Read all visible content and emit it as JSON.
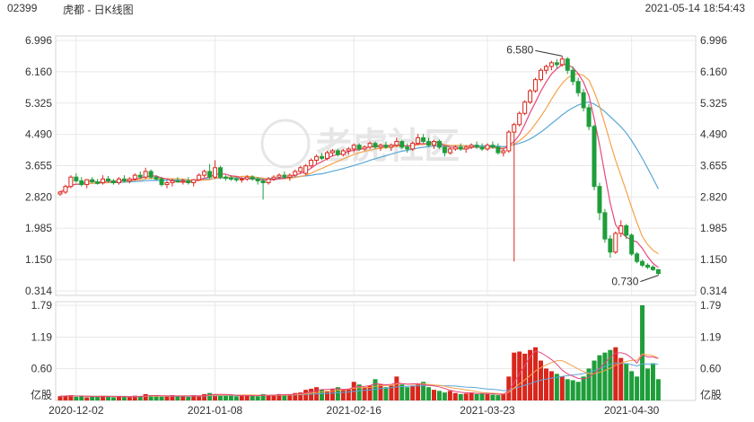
{
  "header": {
    "code": "02399",
    "title": "虎都 - 日K线图",
    "timestamp": "2021-05-14 18:54:43"
  },
  "watermark": "老虎社区",
  "colors": {
    "up": "#d9261c",
    "down": "#1e9e3a",
    "ma5": "#e7467c",
    "ma10": "#f5a34a",
    "ma20": "#5aa8d8",
    "grid": "#e8e8e8"
  },
  "chart_data": {
    "type": "candlestick",
    "price_axis": {
      "ticks": [
        "6.996",
        "6.160",
        "5.325",
        "4.490",
        "3.655",
        "2.820",
        "1.985",
        "1.150",
        "0.314"
      ],
      "ylim": [
        0.314,
        6.996
      ]
    },
    "volume_axis": {
      "ticks": [
        "1.79",
        "1.19",
        "0.60"
      ],
      "unit": "亿股",
      "ylim": [
        0,
        1.79
      ]
    },
    "x_tick_labels": [
      "2020-12-02",
      "2021-01-08",
      "2021-02-16",
      "2021-03-23",
      "2021-04-30"
    ],
    "x_tick_index": [
      3,
      29,
      55,
      80,
      107
    ],
    "annotations": {
      "high": "6.580",
      "low": "0.730"
    },
    "ohlc": [
      [
        2.9,
        2.98,
        2.85,
        2.95
      ],
      [
        2.95,
        3.15,
        2.9,
        3.1
      ],
      [
        3.1,
        3.4,
        3.05,
        3.35
      ],
      [
        3.35,
        3.45,
        3.2,
        3.25
      ],
      [
        3.25,
        3.35,
        3.1,
        3.15
      ],
      [
        3.15,
        3.3,
        3.05,
        3.28
      ],
      [
        3.28,
        3.35,
        3.2,
        3.22
      ],
      [
        3.22,
        3.3,
        3.15,
        3.18
      ],
      [
        3.2,
        3.4,
        3.15,
        3.3
      ],
      [
        3.3,
        3.38,
        3.2,
        3.25
      ],
      [
        3.25,
        3.3,
        3.15,
        3.2
      ],
      [
        3.2,
        3.35,
        3.15,
        3.3
      ],
      [
        3.3,
        3.4,
        3.2,
        3.25
      ],
      [
        3.25,
        3.35,
        3.18,
        3.3
      ],
      [
        3.3,
        3.45,
        3.25,
        3.4
      ],
      [
        3.4,
        3.5,
        3.3,
        3.35
      ],
      [
        3.35,
        3.6,
        3.3,
        3.5
      ],
      [
        3.5,
        3.55,
        3.3,
        3.35
      ],
      [
        3.35,
        3.4,
        3.25,
        3.3
      ],
      [
        3.3,
        3.35,
        3.1,
        3.15
      ],
      [
        3.15,
        3.25,
        3.05,
        3.2
      ],
      [
        3.2,
        3.3,
        3.1,
        3.25
      ],
      [
        3.25,
        3.35,
        3.2,
        3.22
      ],
      [
        3.22,
        3.3,
        3.15,
        3.25
      ],
      [
        3.25,
        3.35,
        3.15,
        3.2
      ],
      [
        3.2,
        3.3,
        3.1,
        3.28
      ],
      [
        3.28,
        3.45,
        3.25,
        3.4
      ],
      [
        3.4,
        3.55,
        3.35,
        3.5
      ],
      [
        3.5,
        3.7,
        3.3,
        3.35
      ],
      [
        3.35,
        3.8,
        3.3,
        3.6
      ],
      [
        3.6,
        3.65,
        3.3,
        3.35
      ],
      [
        3.35,
        3.4,
        3.25,
        3.32
      ],
      [
        3.32,
        3.4,
        3.25,
        3.3
      ],
      [
        3.3,
        3.35,
        3.22,
        3.28
      ],
      [
        3.28,
        3.35,
        3.2,
        3.3
      ],
      [
        3.3,
        3.4,
        3.25,
        3.35
      ],
      [
        3.35,
        3.4,
        3.25,
        3.3
      ],
      [
        3.3,
        3.35,
        3.15,
        3.25
      ],
      [
        3.25,
        3.3,
        2.75,
        3.2
      ],
      [
        3.2,
        3.35,
        3.15,
        3.3
      ],
      [
        3.3,
        3.4,
        3.25,
        3.35
      ],
      [
        3.35,
        3.45,
        3.3,
        3.4
      ],
      [
        3.4,
        3.5,
        3.3,
        3.35
      ],
      [
        3.35,
        3.45,
        3.25,
        3.4
      ],
      [
        3.4,
        3.55,
        3.35,
        3.5
      ],
      [
        3.5,
        3.65,
        3.45,
        3.6
      ],
      [
        3.45,
        3.7,
        3.4,
        3.65
      ],
      [
        3.65,
        3.85,
        3.6,
        3.8
      ],
      [
        3.8,
        3.95,
        3.7,
        3.9
      ],
      [
        3.9,
        4.0,
        3.8,
        3.85
      ],
      [
        3.85,
        4.05,
        3.8,
        4.0
      ],
      [
        4.0,
        4.1,
        3.9,
        4.05
      ],
      [
        4.05,
        4.1,
        3.9,
        3.95
      ],
      [
        3.95,
        4.1,
        3.9,
        4.05
      ],
      [
        4.05,
        4.15,
        3.95,
        4.1
      ],
      [
        4.1,
        4.25,
        4.0,
        4.2
      ],
      [
        4.2,
        4.25,
        4.05,
        4.1
      ],
      [
        4.1,
        4.2,
        4.05,
        4.15
      ],
      [
        4.15,
        4.3,
        4.1,
        4.25
      ],
      [
        4.25,
        4.3,
        4.1,
        4.15
      ],
      [
        4.15,
        4.25,
        4.05,
        4.2
      ],
      [
        4.2,
        4.3,
        4.1,
        4.15
      ],
      [
        4.15,
        4.25,
        4.05,
        4.2
      ],
      [
        4.2,
        4.4,
        4.15,
        4.3
      ],
      [
        4.3,
        4.35,
        4.1,
        4.15
      ],
      [
        4.15,
        4.25,
        4.0,
        4.1
      ],
      [
        4.1,
        4.3,
        4.05,
        4.25
      ],
      [
        4.25,
        4.5,
        4.2,
        4.4
      ],
      [
        4.4,
        4.5,
        4.25,
        4.3
      ],
      [
        4.3,
        4.4,
        4.15,
        4.2
      ],
      [
        4.2,
        4.35,
        4.1,
        4.3
      ],
      [
        4.3,
        4.35,
        4.1,
        4.15
      ],
      [
        4.15,
        4.2,
        3.9,
        4.0
      ],
      [
        4.0,
        4.15,
        3.95,
        4.1
      ],
      [
        4.1,
        4.2,
        4.05,
        4.15
      ],
      [
        4.15,
        4.25,
        4.05,
        4.1
      ],
      [
        4.1,
        4.2,
        4.0,
        4.15
      ],
      [
        4.15,
        4.25,
        4.1,
        4.2
      ],
      [
        4.2,
        4.3,
        4.1,
        4.15
      ],
      [
        4.15,
        4.25,
        4.05,
        4.1
      ],
      [
        4.1,
        4.25,
        4.05,
        4.2
      ],
      [
        4.2,
        4.3,
        4.1,
        4.15
      ],
      [
        4.15,
        4.25,
        3.95,
        4.0
      ],
      [
        4.0,
        4.1,
        3.9,
        4.05
      ],
      [
        4.05,
        4.6,
        4.0,
        4.55
      ],
      [
        4.55,
        4.8,
        1.1,
        4.75
      ],
      [
        4.75,
        5.1,
        4.7,
        5.05
      ],
      [
        5.05,
        5.4,
        5.0,
        5.35
      ],
      [
        5.35,
        5.7,
        5.3,
        5.65
      ],
      [
        5.65,
        6.0,
        5.6,
        5.95
      ],
      [
        5.95,
        6.25,
        5.9,
        6.2
      ],
      [
        6.2,
        6.35,
        6.1,
        6.3
      ],
      [
        6.3,
        6.45,
        6.2,
        6.4
      ],
      [
        6.4,
        6.5,
        6.25,
        6.35
      ],
      [
        6.35,
        6.58,
        6.3,
        6.5
      ],
      [
        6.5,
        6.55,
        6.1,
        6.2
      ],
      [
        6.2,
        6.3,
        5.8,
        5.9
      ],
      [
        5.9,
        6.0,
        5.5,
        5.6
      ],
      [
        5.6,
        5.7,
        5.1,
        5.2
      ],
      [
        5.2,
        5.3,
        4.6,
        4.7
      ],
      [
        4.7,
        4.75,
        3.0,
        3.1
      ],
      [
        3.1,
        3.2,
        2.2,
        2.4
      ],
      [
        2.4,
        2.5,
        1.6,
        1.7
      ],
      [
        1.7,
        1.8,
        1.2,
        1.35
      ],
      [
        1.35,
        1.9,
        1.3,
        1.85
      ],
      [
        1.85,
        2.2,
        1.75,
        2.05
      ],
      [
        2.05,
        2.1,
        1.7,
        1.8
      ],
      [
        1.8,
        1.85,
        1.25,
        1.3
      ],
      [
        1.3,
        1.35,
        1.05,
        1.1
      ],
      [
        1.1,
        1.15,
        0.95,
        1.0
      ],
      [
        1.0,
        1.05,
        0.9,
        0.95
      ],
      [
        0.95,
        1.0,
        0.85,
        0.88
      ],
      [
        0.88,
        0.9,
        0.73,
        0.78
      ]
    ],
    "volume": [
      0.08,
      0.09,
      0.1,
      0.07,
      0.08,
      0.06,
      0.07,
      0.08,
      0.09,
      0.07,
      0.06,
      0.08,
      0.07,
      0.06,
      0.09,
      0.08,
      0.12,
      0.1,
      0.08,
      0.07,
      0.08,
      0.1,
      0.09,
      0.08,
      0.07,
      0.1,
      0.09,
      0.12,
      0.14,
      0.12,
      0.1,
      0.09,
      0.1,
      0.08,
      0.09,
      0.1,
      0.09,
      0.08,
      0.12,
      0.1,
      0.11,
      0.12,
      0.1,
      0.12,
      0.14,
      0.15,
      0.2,
      0.22,
      0.25,
      0.2,
      0.18,
      0.22,
      0.25,
      0.2,
      0.22,
      0.35,
      0.3,
      0.25,
      0.28,
      0.4,
      0.3,
      0.25,
      0.28,
      0.45,
      0.3,
      0.25,
      0.28,
      0.3,
      0.35,
      0.25,
      0.2,
      0.18,
      0.15,
      0.18,
      0.14,
      0.12,
      0.13,
      0.15,
      0.12,
      0.13,
      0.12,
      0.11,
      0.1,
      0.12,
      0.45,
      0.9,
      0.92,
      0.88,
      0.95,
      1.0,
      0.75,
      0.6,
      0.55,
      0.5,
      0.45,
      0.4,
      0.38,
      0.35,
      0.45,
      0.6,
      0.75,
      0.85,
      0.9,
      0.95,
      1.0,
      0.8,
      0.7,
      0.55,
      0.45,
      1.79,
      0.6,
      0.7,
      0.4
    ]
  }
}
